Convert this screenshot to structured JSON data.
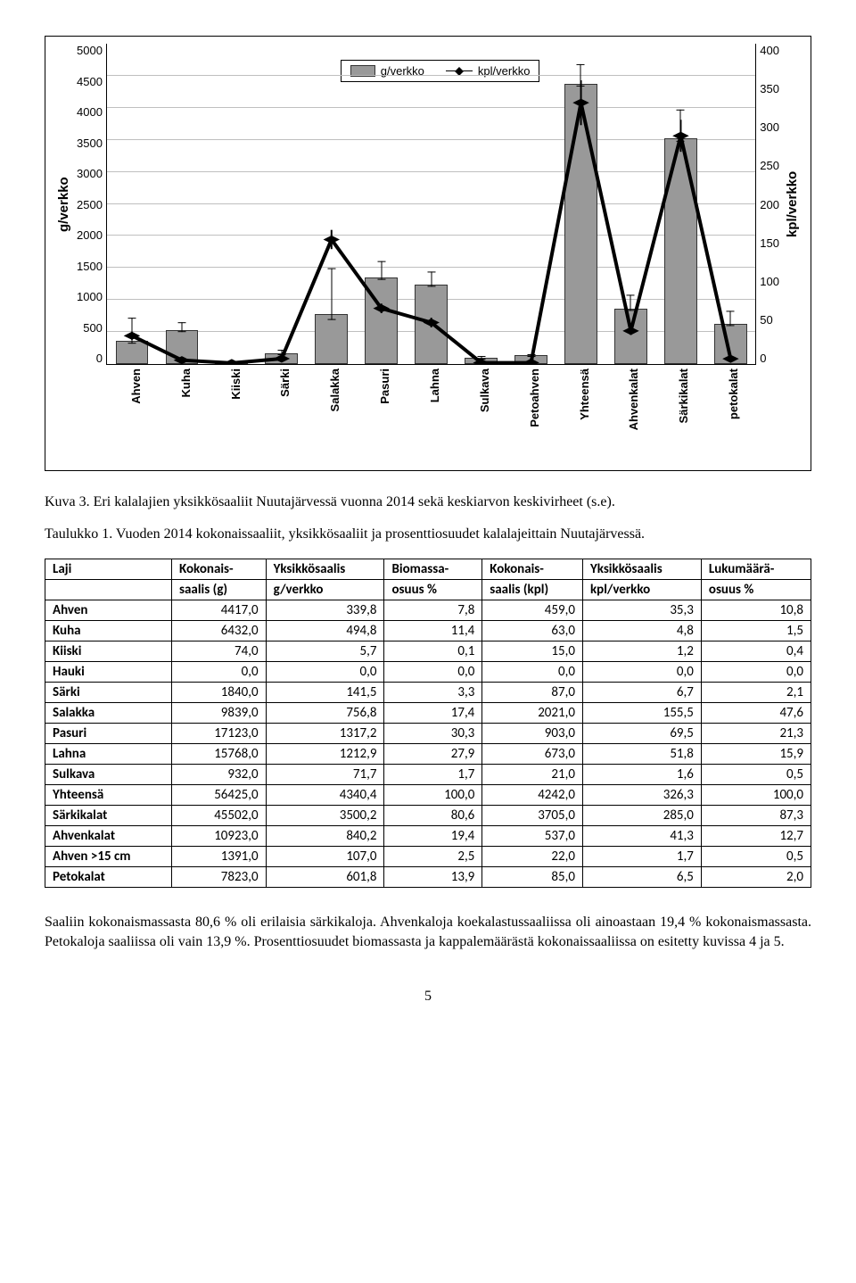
{
  "chart": {
    "type": "bar+line",
    "left_axis_label": "g/verkko",
    "right_axis_label": "kpl/verkko",
    "left_ylim": [
      0,
      5000
    ],
    "left_ytick_step": 500,
    "right_ylim": [
      0,
      400
    ],
    "right_ytick_step": 50,
    "bar_color": "#999999",
    "bar_border": "#333333",
    "grid_color": "#bfbfbf",
    "line_color": "#000000",
    "marker": "diamond",
    "legend": {
      "bar_label": "g/verkko",
      "line_label": "kpl/verkko"
    },
    "label_fontsize": 13,
    "axis_label_fontsize": 15,
    "categories": [
      "Ahven",
      "Kuha",
      "Kiiski",
      "Särki",
      "Salakka",
      "Pasuri",
      "Lahna",
      "Sulkava",
      "Petoahven",
      "Yhteensä",
      "Ahvenkalat",
      "Särkikalat",
      "petokalat"
    ],
    "bar_values_g": [
      339.8,
      494.8,
      5.7,
      141.5,
      756.8,
      1317.2,
      1212.9,
      71.7,
      107.0,
      4340.4,
      840.2,
      3500.2,
      601.8
    ],
    "bar_err_g": [
      200,
      80,
      5,
      40,
      400,
      150,
      120,
      30,
      20,
      180,
      120,
      250,
      120
    ],
    "line_values_kpl": [
      35.3,
      4.8,
      1.2,
      6.7,
      155.5,
      69.5,
      51.8,
      1.6,
      1.7,
      326.3,
      41.3,
      285.0,
      6.5
    ],
    "line_err_kpl": [
      5,
      2,
      1,
      2,
      12,
      6,
      6,
      1,
      1,
      28,
      5,
      20,
      3
    ]
  },
  "caption_chart": "Kuva 3. Eri kalalajien yksikkösaaliit Nuutajärvessä vuonna 2014 sekä keskiarvon keskivirheet (s.e).",
  "caption_table": "Taulukko 1. Vuoden 2014 kokonaissaaliit, yksikkösaaliit ja prosenttiosuudet kalalajeittain Nuutajärvessä.",
  "table": {
    "columns_top": [
      "Laji",
      "Kokonais-",
      "Yksikkösaalis",
      "Biomassa-",
      "Kokonais-",
      "Yksikkösaalis",
      "Lukumäärä-"
    ],
    "columns_bot": [
      "",
      "saalis (g)",
      "g/verkko",
      "osuus %",
      "saalis (kpl)",
      "kpl/verkko",
      "osuus %"
    ],
    "rows": [
      [
        "Ahven",
        "4417,0",
        "339,8",
        "7,8",
        "459,0",
        "35,3",
        "10,8"
      ],
      [
        "Kuha",
        "6432,0",
        "494,8",
        "11,4",
        "63,0",
        "4,8",
        "1,5"
      ],
      [
        "Kiiski",
        "74,0",
        "5,7",
        "0,1",
        "15,0",
        "1,2",
        "0,4"
      ],
      [
        "Hauki",
        "0,0",
        "0,0",
        "0,0",
        "0,0",
        "0,0",
        "0,0"
      ],
      [
        "Särki",
        "1840,0",
        "141,5",
        "3,3",
        "87,0",
        "6,7",
        "2,1"
      ],
      [
        "Salakka",
        "9839,0",
        "756,8",
        "17,4",
        "2021,0",
        "155,5",
        "47,6"
      ],
      [
        "Pasuri",
        "17123,0",
        "1317,2",
        "30,3",
        "903,0",
        "69,5",
        "21,3"
      ],
      [
        "Lahna",
        "15768,0",
        "1212,9",
        "27,9",
        "673,0",
        "51,8",
        "15,9"
      ],
      [
        "Sulkava",
        "932,0",
        "71,7",
        "1,7",
        "21,0",
        "1,6",
        "0,5"
      ],
      [
        "Yhteensä",
        "56425,0",
        "4340,4",
        "100,0",
        "4242,0",
        "326,3",
        "100,0"
      ],
      [
        "Särkikalat",
        "45502,0",
        "3500,2",
        "80,6",
        "3705,0",
        "285,0",
        "87,3"
      ],
      [
        "Ahvenkalat",
        "10923,0",
        "840,2",
        "19,4",
        "537,0",
        "41,3",
        "12,7"
      ],
      [
        "Ahven >15 cm",
        "1391,0",
        "107,0",
        "2,5",
        "22,0",
        "1,7",
        "0,5"
      ],
      [
        "Petokalat",
        "7823,0",
        "601,8",
        "13,9",
        "85,0",
        "6,5",
        "2,0"
      ]
    ],
    "col_align": [
      "left",
      "right",
      "right",
      "right",
      "right",
      "right",
      "right"
    ]
  },
  "paragraph": "Saaliin kokonaismassasta 80,6 % oli erilaisia särkikaloja. Ahvenkaloja koekalastussaaliissa oli ainoastaan 19,4 % kokonaismassasta. Petokaloja saaliissa oli vain 13,9 %. Prosenttiosuudet biomassasta ja kappalemäärästä kokonaissaaliissa on esitetty kuvissa 4 ja 5.",
  "page_number": "5"
}
